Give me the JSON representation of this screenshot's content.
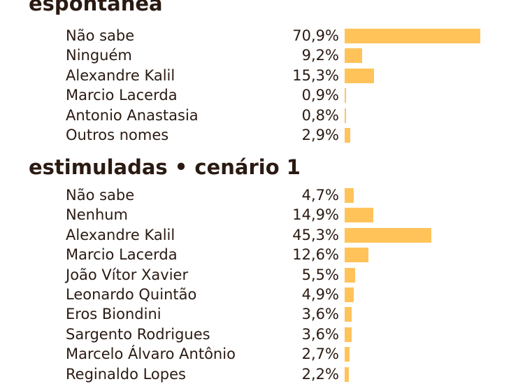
{
  "colors": {
    "bar": "#ffc35a",
    "text": "#2a1a12"
  },
  "chart_data": [
    {
      "type": "bar",
      "orientation": "horizontal",
      "title": "espontânea",
      "categories": [
        "Não sabe",
        "Ninguém",
        "Alexandre Kalil",
        "Marcio Lacerda",
        "Antonio Anastasia",
        "Outros nomes"
      ],
      "values": [
        70.9,
        9.2,
        15.3,
        0.9,
        0.8,
        2.9
      ],
      "labels": [
        "70,9%",
        "9,2%",
        "15,3%",
        "0,9%",
        "0,8%",
        "2,9%"
      ],
      "xlim": [
        0,
        100
      ]
    },
    {
      "type": "bar",
      "orientation": "horizontal",
      "title": "estimuladas • cenário 1",
      "categories": [
        "Não sabe",
        "Nenhum",
        "Alexandre Kalil",
        "Marcio Lacerda",
        "João Vítor Xavier",
        "Leonardo Quintão",
        "Eros Biondini",
        "Sargento Rodrigues",
        "Marcelo Álvaro Antônio",
        "Reginaldo Lopes"
      ],
      "values": [
        4.7,
        14.9,
        45.3,
        12.6,
        5.5,
        4.9,
        3.6,
        3.6,
        2.7,
        2.2
      ],
      "labels": [
        "4,7%",
        "14,9%",
        "45,3%",
        "12,6%",
        "5,5%",
        "4,9%",
        "3,6%",
        "3,6%",
        "2,7%",
        "2,2%"
      ],
      "xlim": [
        0,
        100
      ]
    }
  ]
}
